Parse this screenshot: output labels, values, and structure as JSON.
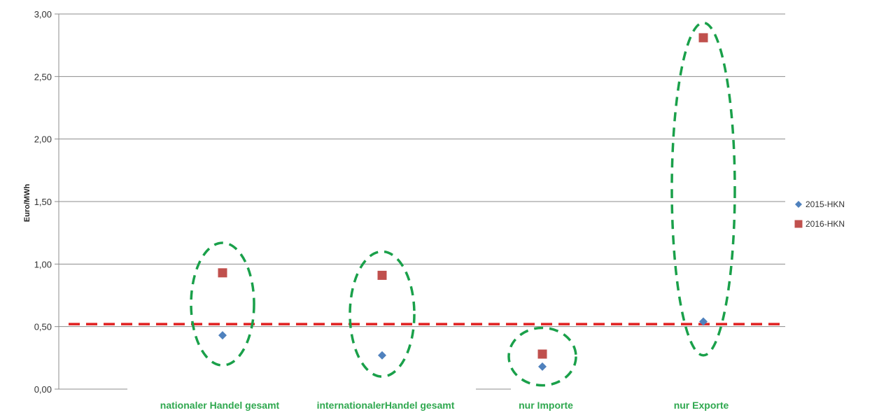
{
  "chart_data": {
    "type": "scatter",
    "ylabel": "Euro/MWh",
    "ylim": [
      0,
      3
    ],
    "yticks": [
      "0,00",
      "0,50",
      "1,00",
      "1,50",
      "2,00",
      "2,50",
      "3,00"
    ],
    "categories": [
      "nationaler Handel gesamt",
      "internationalerHandel gesamt",
      "nur Importe",
      "nur Exporte"
    ],
    "series": [
      {
        "name": "2015-HKN",
        "marker": "diamond",
        "color": "#4f81bd",
        "values": [
          0.43,
          0.27,
          0.18,
          0.54
        ]
      },
      {
        "name": "2016-HKN",
        "marker": "square",
        "color": "#c0504d",
        "values": [
          0.93,
          0.91,
          0.28,
          2.81
        ]
      }
    ],
    "reference_line": {
      "value": 0.52,
      "color": "#e02020",
      "style": "dashed"
    },
    "highlight_ellipses": {
      "color": "#1aa04a",
      "style": "dashed",
      "ranges": [
        [
          0.19,
          1.17
        ],
        [
          0.1,
          1.1
        ],
        [
          0.03,
          0.49
        ],
        [
          0.27,
          2.93
        ]
      ]
    },
    "category_label_color": "#2fa84f",
    "grid": true,
    "legend_position": "right"
  }
}
